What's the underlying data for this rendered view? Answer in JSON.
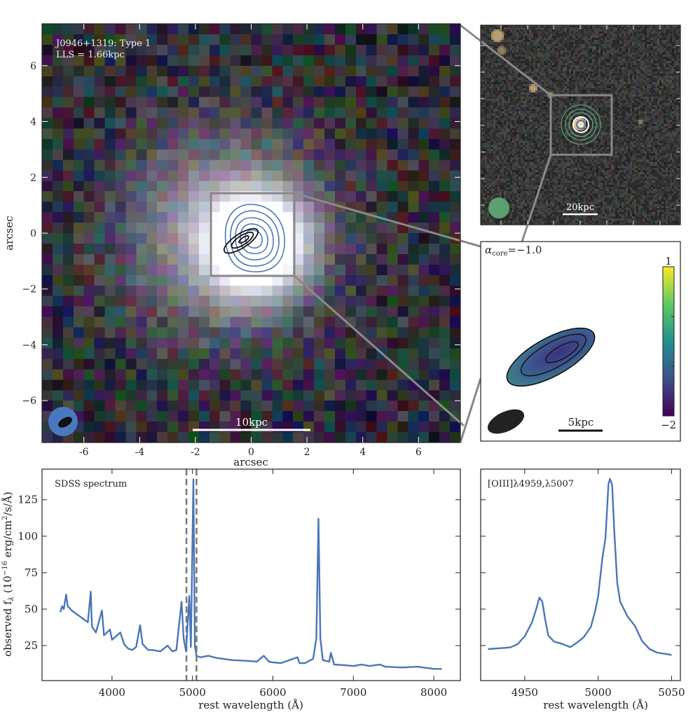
{
  "colors": {
    "spectrum": "#4a76b8",
    "frame": "#222222",
    "inset_box": "#888888",
    "contour_blue": "#4a78b8",
    "contour_black": "#111111",
    "beam_blue": "#4a78c0",
    "beam_green": "#5aa070"
  },
  "chart_data": [
    {
      "type": "image",
      "panel": "optical-cutout",
      "annotation_line1": "J0946+1319: Type 1",
      "annotation_line2": "LLS = 1.66kpc",
      "xlabel": "arcsec",
      "ylabel": "arcsec",
      "xlim": [
        -7.5,
        7.5
      ],
      "ylim": [
        -7.5,
        7.5
      ],
      "xticks": [
        -6,
        -4,
        -2,
        0,
        2,
        4,
        6
      ],
      "yticks": [
        6,
        4,
        2,
        0,
        -2,
        -4,
        -6
      ],
      "scalebar_label": "10kpc",
      "inset_box_arcsec": [
        -1.5,
        1.5,
        -1.5,
        1.5
      ]
    },
    {
      "type": "image",
      "panel": "wide-field",
      "scalebar_label": "20kpc"
    },
    {
      "type": "heatmap",
      "panel": "spectral-index-map",
      "annotation_symbol": "α",
      "annotation_sub": "core",
      "annotation_value": "=−1.0",
      "colorbar": {
        "colormap": "viridis",
        "range": [
          -2,
          1
        ],
        "top_label": "1",
        "bottom_label": "−2"
      },
      "scalebar_label": "5kpc"
    },
    {
      "type": "line",
      "panel": "sdss-spectrum",
      "annotation": "SDSS spectrum",
      "xlabel": "rest wavelength (Å)",
      "ylabel_pre": "observed f",
      "ylabel_sub": "λ",
      "ylabel_mid": " (10",
      "ylabel_sup": "−16",
      "ylabel_mid2": " erg/cm",
      "ylabel_sup2": "2",
      "ylabel_post": "/s/Å)",
      "xlim": [
        3130,
        8330
      ],
      "ylim": [
        1,
        146
      ],
      "xticks": [
        4000,
        5000,
        6000,
        7000,
        8000
      ],
      "yticks": [
        25,
        50,
        75,
        100,
        125
      ],
      "vlines_dashed": [
        4925,
        5050
      ],
      "x": [
        3357,
        3380,
        3400,
        3430,
        3450,
        3500,
        3600,
        3700,
        3735,
        3750,
        3800,
        3875,
        3900,
        3974,
        4000,
        4103,
        4150,
        4200,
        4250,
        4300,
        4349,
        4380,
        4450,
        4500,
        4600,
        4691,
        4750,
        4800,
        4864,
        4890,
        4920,
        4960,
        4980,
        5011,
        5030,
        5050,
        5100,
        5200,
        5300,
        5500,
        5700,
        5800,
        5886,
        5950,
        6000,
        6100,
        6305,
        6330,
        6400,
        6500,
        6540,
        6566,
        6590,
        6620,
        6700,
        6720,
        6760,
        6900,
        7000,
        7100,
        7200,
        7330,
        7400,
        7600,
        7800,
        8000,
        8100
      ],
      "y": [
        48,
        52,
        50,
        60,
        52,
        49,
        45,
        41,
        62,
        38,
        34,
        49,
        32,
        36,
        29,
        34,
        26,
        23,
        22,
        24,
        39,
        26,
        22,
        22,
        21,
        25,
        21,
        22,
        55,
        30,
        21,
        59,
        24,
        139,
        25,
        18,
        17,
        18,
        16.5,
        15,
        14.5,
        14,
        18,
        14,
        13.5,
        13,
        17,
        13,
        13,
        16,
        30,
        112,
        30,
        15,
        14,
        20,
        12,
        11.5,
        11,
        12,
        11,
        12,
        10.5,
        10,
        10.5,
        9,
        9
      ]
    },
    {
      "type": "line",
      "panel": "oiii-zoom",
      "annotation": "[OIII]λ4959,λ5007",
      "xlabel": "rest wavelength (Å)",
      "xlim": [
        4920,
        5056
      ],
      "ylim": [
        1,
        146
      ],
      "xticks": [
        4950,
        5000,
        5050
      ],
      "yticks": [
        25,
        50,
        75,
        100,
        125
      ],
      "x": [
        4925,
        4940,
        4945,
        4950,
        4955,
        4958,
        4960,
        4962,
        4964,
        4966,
        4970,
        4975,
        4981,
        4985,
        4990,
        4995,
        4998,
        5000,
        5003,
        5005,
        5007,
        5008,
        5009.5,
        5011,
        5013,
        5015,
        5020,
        5025,
        5030,
        5035,
        5040,
        5050
      ],
      "y": [
        22.6,
        23.7,
        25.8,
        31.4,
        41,
        50.6,
        58,
        55,
        42.6,
        32,
        27.7,
        26.3,
        23.9,
        26.6,
        30.6,
        37.8,
        49,
        58.6,
        85.8,
        98.6,
        135.4,
        139.4,
        135.4,
        103,
        68,
        55,
        45,
        38.6,
        28,
        22.6,
        20.2,
        18.6
      ]
    }
  ]
}
